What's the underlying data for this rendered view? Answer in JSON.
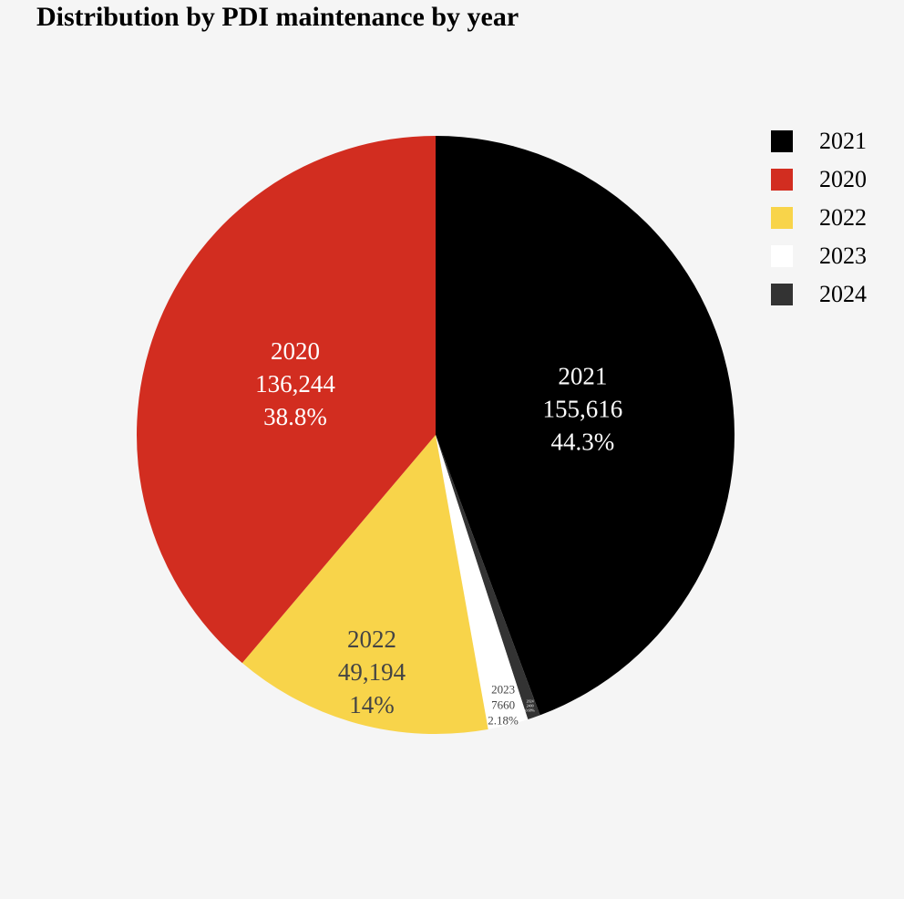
{
  "chart_data": {
    "type": "pie",
    "title": "Distribution by PDI maintenance by year",
    "legend_position": "right",
    "slices": [
      {
        "label": "2021",
        "value": 155616,
        "value_text": "155,616",
        "percent_text": "44.3%",
        "color": "#000000",
        "text_color": "#ffffff"
      },
      {
        "label": "2024",
        "value": 2400,
        "value_text": "2400",
        "percent_text": "0.68%",
        "color": "#333333",
        "text_color": "#ffffff"
      },
      {
        "label": "2023",
        "value": 7660,
        "value_text": "7660",
        "percent_text": "2.18%",
        "color": "#ffffff",
        "text_color": "#444444"
      },
      {
        "label": "2022",
        "value": 49194,
        "value_text": "49,194",
        "percent_text": "14%",
        "color": "#f8d44a",
        "text_color": "#444444"
      },
      {
        "label": "2020",
        "value": 136244,
        "value_text": "136,244",
        "percent_text": "38.8%",
        "color": "#d22d20",
        "text_color": "#ffffff"
      }
    ],
    "legend": [
      {
        "label": "2021",
        "color": "#000000"
      },
      {
        "label": "2020",
        "color": "#d22d20"
      },
      {
        "label": "2022",
        "color": "#f8d44a"
      },
      {
        "label": "2023",
        "color": "#ffffff"
      },
      {
        "label": "2024",
        "color": "#333333"
      }
    ]
  }
}
